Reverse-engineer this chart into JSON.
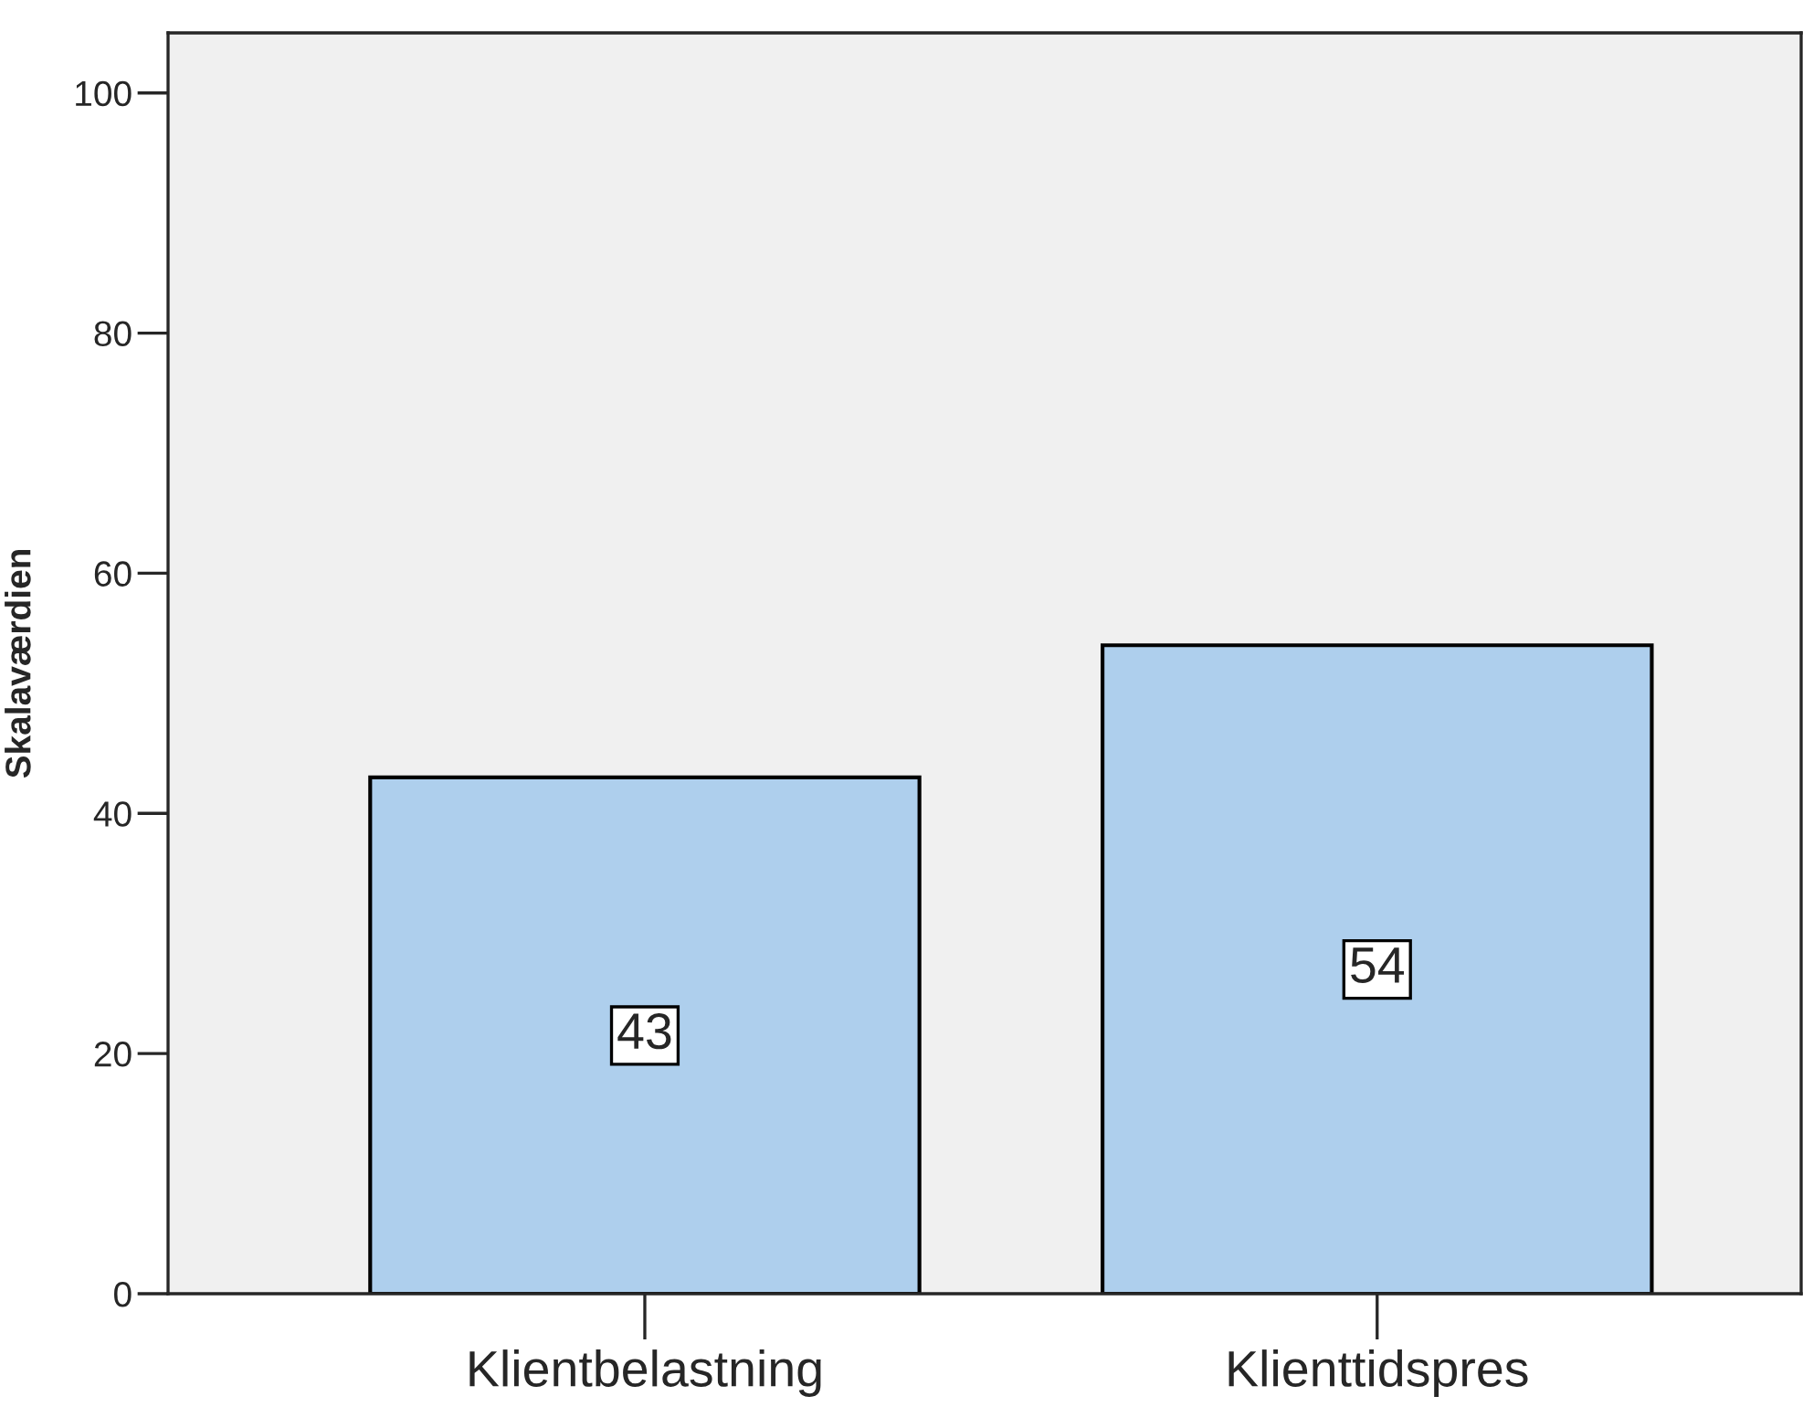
{
  "chart_data": {
    "type": "bar",
    "ylabel": "Skalaværdien",
    "categories": [
      "Klientbelastning",
      "Klienttidspres"
    ],
    "values": [
      43,
      54
    ],
    "color": "#aecfed",
    "ylim": [
      0,
      105
    ],
    "yticks": [
      0,
      20,
      40,
      60,
      80,
      100
    ],
    "data_labels": true,
    "grid": false
  }
}
